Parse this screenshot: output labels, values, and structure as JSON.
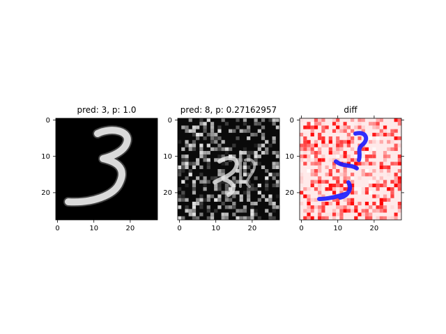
{
  "chart_data": [
    {
      "type": "heatmap",
      "title": "pred: 3, p: 1.0",
      "colormap": "gray",
      "image_size": [
        28,
        28
      ],
      "x_ticks": [
        0,
        10,
        20
      ],
      "y_ticks": [
        0,
        10,
        20
      ],
      "x_tick_labels": [
        "0",
        "10",
        "20"
      ],
      "y_tick_labels": [
        "0",
        "10",
        "20"
      ],
      "content": "MNIST digit 3 on black background"
    },
    {
      "type": "heatmap",
      "title": "pred: 8, p: 0.27162957",
      "colormap": "gray",
      "image_size": [
        28,
        28
      ],
      "x_ticks": [
        0,
        10,
        20
      ],
      "y_ticks": [
        0,
        10,
        20
      ],
      "x_tick_labels": [
        "0",
        "10",
        "20"
      ],
      "y_tick_labels": [
        "0",
        "10",
        "20"
      ],
      "content": "adversarially perturbed digit with scattered bright noise"
    },
    {
      "type": "heatmap",
      "title": "diff",
      "colormap": "bwr",
      "image_size": [
        28,
        28
      ],
      "x_ticks": [
        0,
        10,
        20
      ],
      "y_ticks": [
        0,
        10,
        20
      ],
      "x_tick_labels": [
        "0",
        "10",
        "20"
      ],
      "y_tick_labels": [
        "0",
        "10",
        "20"
      ],
      "content": "difference map: blue along digit strokes, red scattered"
    }
  ]
}
